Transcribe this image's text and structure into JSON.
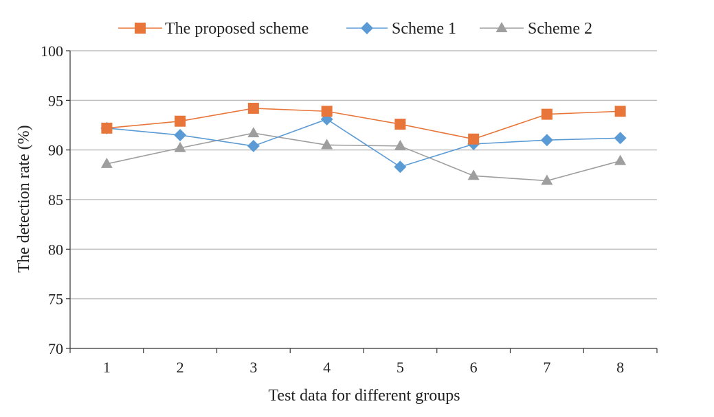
{
  "chart_data": {
    "type": "line",
    "title": "",
    "xlabel": "Test data for different groups",
    "ylabel": "The detection rate (%)",
    "x": [
      1,
      2,
      3,
      4,
      5,
      6,
      7,
      8
    ],
    "ylim": [
      70,
      100
    ],
    "yticks": [
      70,
      75,
      80,
      85,
      90,
      95,
      100
    ],
    "grid": "horizontal",
    "legend_position": "top",
    "series": [
      {
        "name": "The proposed scheme",
        "marker": "square",
        "color": "#E8763A",
        "values": [
          92.2,
          92.9,
          94.2,
          93.9,
          92.6,
          91.1,
          93.6,
          93.9
        ]
      },
      {
        "name": "Scheme 1",
        "marker": "diamond",
        "color": "#5B9BD5",
        "values": [
          92.2,
          91.5,
          90.4,
          93.1,
          88.3,
          90.6,
          91.0,
          91.2
        ]
      },
      {
        "name": "Scheme 2",
        "marker": "triangle",
        "color": "#9E9E9E",
        "values": [
          88.6,
          90.2,
          91.7,
          90.5,
          90.4,
          87.4,
          86.9,
          88.9
        ]
      }
    ]
  }
}
